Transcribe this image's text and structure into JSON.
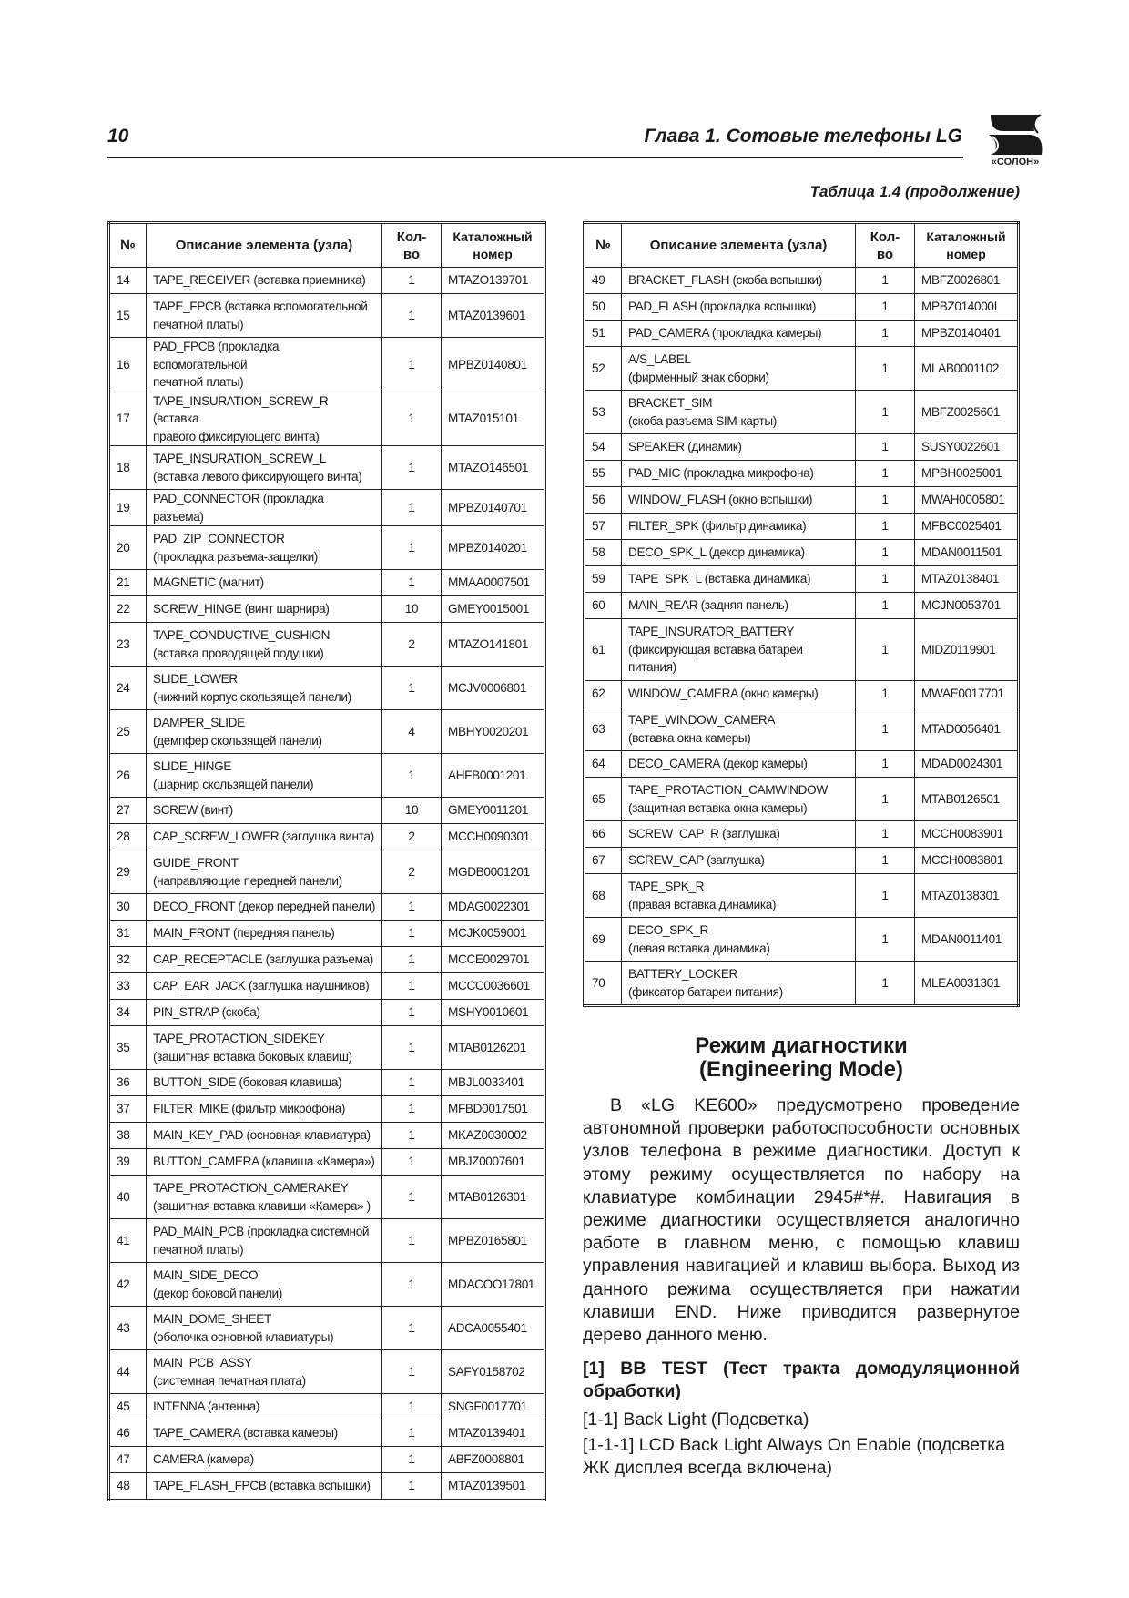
{
  "header": {
    "page_number": "10",
    "chapter": "Глава 1. Сотовые телефоны LG",
    "logo_text": "«СОЛОН»"
  },
  "table_caption": "Таблица 1.4 (продолжение)",
  "columns": [
    "№",
    "Описание элемента (узла)",
    "Кол-во",
    "Каталожный номер"
  ],
  "left_table": [
    [
      "14",
      "TAPE_RECEIVER (вставка приемника)",
      "1",
      "MTAZO139701"
    ],
    [
      "15",
      "TAPE_FPCB (вставка вспомогательной\nпечатной платы)",
      "1",
      "MTAZ0139601"
    ],
    [
      "16",
      "PAD_FPCB (прокладка вспомогательной\nпечатной платы)",
      "1",
      "MPBZ0140801"
    ],
    [
      "17",
      "TAPE_INSURATION_SCREW_R (вставка\nправого фиксирующего винта)",
      "1",
      "MTAZ015101"
    ],
    [
      "18",
      "TAPE_INSURATION_SCREW_L\n(вставка левого фиксирующего винта)",
      "1",
      "MTAZO146501"
    ],
    [
      "19",
      "PAD_CONNECTOR (прокладка разъема)",
      "1",
      "MPBZ0140701"
    ],
    [
      "20",
      "PAD_ZIP_CONNECTOR\n(прокладка разъема-защелки)",
      "1",
      "MPBZ0140201"
    ],
    [
      "21",
      "MAGNETIC (магнит)",
      "1",
      "MMAA0007501"
    ],
    [
      "22",
      "SCREW_HINGE (винт шарнира)",
      "10",
      "GMEY0015001"
    ],
    [
      "23",
      "TAPE_CONDUCTIVE_CUSHION\n(вставка проводящей подушки)",
      "2",
      "MTAZO141801"
    ],
    [
      "24",
      "SLIDE_LOWER\n(нижний корпус скользящей панели)",
      "1",
      "MCJV0006801"
    ],
    [
      "25",
      "DAMPER_SLIDE\n(демпфер скользящей панели)",
      "4",
      "MBHY0020201"
    ],
    [
      "26",
      "SLIDE_HINGE\n(шарнир скользящей панели)",
      "1",
      "AHFB0001201"
    ],
    [
      "27",
      "SCREW (винт)",
      "10",
      "GMEY0011201"
    ],
    [
      "28",
      "CAP_SCREW_LOWER (заглушка винта)",
      "2",
      "MCCH0090301"
    ],
    [
      "29",
      "GUIDE_FRONT\n(направляющие передней панели)",
      "2",
      "MGDB0001201"
    ],
    [
      "30",
      "DECO_FRONT (декор передней панели)",
      "1",
      "MDAG0022301"
    ],
    [
      "31",
      "MAIN_FRONT (передняя панель)",
      "1",
      "MCJK0059001"
    ],
    [
      "32",
      "CAP_RECEPTACLE (заглушка разъема)",
      "1",
      "MCCE0029701"
    ],
    [
      "33",
      "CAP_EAR_JACK (заглушка наушников)",
      "1",
      "MCCC0036601"
    ],
    [
      "34",
      "PIN_STRAP (скоба)",
      "1",
      "MSHY0010601"
    ],
    [
      "35",
      "TAPE_PROTACTION_SIDEKEY\n(защитная вставка боковых клавиш)",
      "1",
      "MTAB0126201"
    ],
    [
      "36",
      "BUTTON_SIDE (боковая клавиша)",
      "1",
      "MBJL0033401"
    ],
    [
      "37",
      "FILTER_MIKE (фильтр микрофона)",
      "1",
      "MFBD0017501"
    ],
    [
      "38",
      "MAIN_KEY_PAD (основная клавиатура)",
      "1",
      "MKAZ0030002"
    ],
    [
      "39",
      "BUTTON_CAMERA (клавиша «Камера»)",
      "1",
      "MBJZ0007601"
    ],
    [
      "40",
      "TAPE_PROTACTION_CAMERAKEY\n(защитная вставка клавиши «Камера» )",
      "1",
      "MTAB0126301"
    ],
    [
      "41",
      "PAD_MAIN_PCB (прокладка системной\nпечатной платы)",
      "1",
      "MPBZ0165801"
    ],
    [
      "42",
      "MAIN_SIDE_DECO\n(декор боковой панели)",
      "1",
      "MDACOO17801"
    ],
    [
      "43",
      "MAIN_DOME_SHEET\n(оболочка основной клавиатуры)",
      "1",
      "ADCA0055401"
    ],
    [
      "44",
      "MAIN_PCB_ASSY\n(системная печатная плата)",
      "1",
      "SAFY0158702"
    ],
    [
      "45",
      "INTENNA (антенна)",
      "1",
      "SNGF0017701"
    ],
    [
      "46",
      "TAPE_CAMERA (вставка камеры)",
      "1",
      "MTAZ0139401"
    ],
    [
      "47",
      "CAMERA (камера)",
      "1",
      "ABFZ0008801"
    ],
    [
      "48",
      "TAPE_FLASH_FPCB (вставка вспышки)",
      "1",
      "MTAZ0139501"
    ]
  ],
  "right_table": [
    [
      "49",
      "BRACKET_FLASH (скоба вспышки)",
      "1",
      "MBFZ0026801"
    ],
    [
      "50",
      "PAD_FLASH (прокладка вспышки)",
      "1",
      "MPBZ014000I"
    ],
    [
      "51",
      "PAD_CAMERA (прокладка камеры)",
      "1",
      "MPBZ0140401"
    ],
    [
      "52",
      "A/S_LABEL\n(фирменный знак сборки)",
      "1",
      "MLAB0001102"
    ],
    [
      "53",
      "BRACKET_SIM\n(скоба разъема SIM-карты)",
      "1",
      "MBFZ0025601"
    ],
    [
      "54",
      "SPEAKER (динамик)",
      "1",
      "SUSY0022601"
    ],
    [
      "55",
      "PAD_MIC (прокладка микрофона)",
      "1",
      "MPBH0025001"
    ],
    [
      "56",
      "WINDOW_FLASH (окно вспышки)",
      "1",
      "MWAH0005801"
    ],
    [
      "57",
      "FILTER_SPK (фильтр динамика)",
      "1",
      "MFBC0025401"
    ],
    [
      "58",
      "DECO_SPK_L (декор динамика)",
      "1",
      "MDAN0011501"
    ],
    [
      "59",
      "TAPE_SPK_L (вставка динамика)",
      "1",
      "MTAZ0138401"
    ],
    [
      "60",
      "MAIN_REAR (задняя панель)",
      "1",
      "MCJN0053701"
    ],
    [
      "61",
      "TAPE_INSURATOR_BATTERY\n(фиксирующая вставка батареи\nпитания)",
      "1",
      "MIDZ0119901"
    ],
    [
      "62",
      "WINDOW_CAMERA (окно камеры)",
      "1",
      "MWAE0017701"
    ],
    [
      "63",
      "TAPE_WINDOW_CAMERA\n(вставка окна камеры)",
      "1",
      "MTAD0056401"
    ],
    [
      "64",
      "DECO_CAMERA (декор камеры)",
      "1",
      "MDAD0024301"
    ],
    [
      "65",
      "TAPE_PROTACTION_CAMWINDOW\n(защитная вставка окна камеры)",
      "1",
      "MTAB0126501"
    ],
    [
      "66",
      "SCREW_CAP_R (заглушка)",
      "1",
      "MCCH0083901"
    ],
    [
      "67",
      "SCREW_CAP (заглушка)",
      "1",
      "MCCH0083801"
    ],
    [
      "68",
      "TAPE_SPK_R\n (правая вставка динамика)",
      "1",
      "MTAZ0138301"
    ],
    [
      "69",
      "DECO_SPK_R\n(левая вставка динамика)",
      "1",
      "MDAN0011401"
    ],
    [
      "70",
      "BATTERY_LOCKER\n(фиксатор батареи питания)",
      "1",
      "MLEA0031301"
    ]
  ],
  "section": {
    "title_line1": "Режим диагностики",
    "title_line2": "(Engineering Mode)",
    "paragraph": "В «LG KE600» предусмотрено проведение автономной проверки работоспособности основных узлов телефона в режиме диагностики. Доступ к этому режиму осуществляется по набору на клавиатуре комбинации 2945#*#. Навигация в режиме диагностики осуществляется аналогично работе в главном меню, с помощью клавиш управления навигацией и клавиш выбора. Выход из данного режима осуществляется при нажатии клавиши END. Ниже приводится развернутое дерево данного меню.",
    "subheading": "[1] BB TEST (Тест тракта домодуляционной обработки)",
    "items": [
      "[1-1] Back Light (Подсветка)",
      "[1-1-1] LCD Back Light Always On Enable (подсветка ЖК дисплея всегда включена)"
    ]
  }
}
